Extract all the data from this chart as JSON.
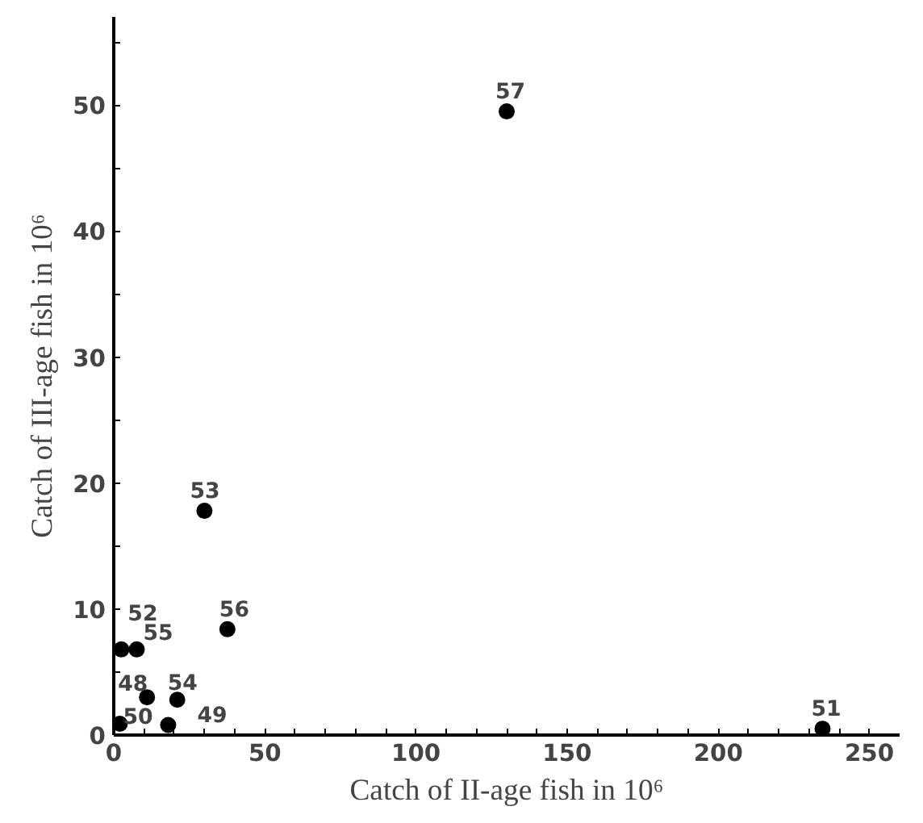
{
  "chart_data": {
    "type": "scatter",
    "xlabel": "Catch of II-age fish in 10⁶",
    "ylabel": "Catch of III-age fish in 10⁶",
    "x": [
      130,
      30,
      37.6,
      2.5,
      7.6,
      11,
      21,
      2,
      18,
      234.5
    ],
    "values": [
      49.5,
      17.8,
      8.4,
      6.8,
      6.8,
      3.0,
      2.8,
      0.9,
      0.8,
      0.5
    ],
    "color": "#000000",
    "marker": "circle",
    "grid": false,
    "annotations": [
      {
        "text": "57",
        "x": 130,
        "y": 49.5
      },
      {
        "text": "53",
        "x": 30,
        "y": 17.8
      },
      {
        "text": "56",
        "x": 37.6,
        "y": 8.4
      },
      {
        "text": "52",
        "x": 2.5,
        "y": 6.8
      },
      {
        "text": "55",
        "x": 7.6,
        "y": 6.8
      },
      {
        "text": "48",
        "x": 11,
        "y": 3.0
      },
      {
        "text": "54",
        "x": 21,
        "y": 2.8
      },
      {
        "text": "50",
        "x": 2,
        "y": 0.9
      },
      {
        "text": "49",
        "x": 18,
        "y": 0.8
      },
      {
        "text": "51",
        "x": 234.5,
        "y": 0.5
      }
    ],
    "xlim": [
      0,
      260
    ],
    "ylim": [
      0,
      57
    ],
    "xticks": [
      0,
      {
        "value": 10,
        "label": null
      },
      {
        "value": 20,
        "label": null
      },
      {
        "value": 30,
        "label": null
      },
      {
        "value": 40,
        "label": null
      },
      50,
      {
        "value": 60,
        "label": null
      },
      {
        "value": 70,
        "label": null
      },
      {
        "value": 80,
        "label": null
      },
      {
        "value": 90,
        "label": null
      },
      100,
      {
        "value": 110,
        "label": null
      },
      {
        "value": 120,
        "label": null
      },
      {
        "value": 130,
        "label": null
      },
      {
        "value": 140,
        "label": null
      },
      150,
      {
        "value": 160,
        "label": null
      },
      {
        "value": 170,
        "label": null
      },
      {
        "value": 180,
        "label": null
      },
      {
        "value": 190,
        "label": null
      },
      200,
      {
        "value": 210,
        "label": null
      },
      {
        "value": 220,
        "label": null
      },
      {
        "value": 230,
        "label": null
      },
      {
        "value": 240,
        "label": null
      },
      250
    ],
    "yticks": [
      0,
      {
        "value": 5,
        "label": null
      },
      10,
      {
        "value": 15,
        "label": null
      },
      20,
      {
        "value": 25,
        "label": null
      },
      30,
      {
        "value": 35,
        "label": null
      },
      40,
      {
        "value": 45,
        "label": null
      },
      50,
      {
        "value": 55,
        "label": null
      }
    ]
  }
}
